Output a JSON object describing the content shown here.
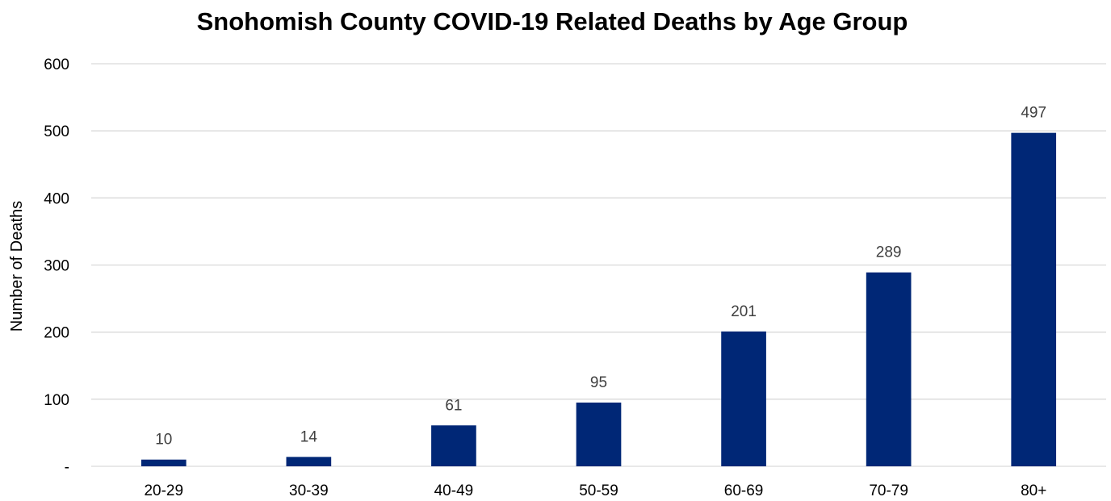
{
  "chart_data": {
    "type": "bar",
    "title": "Snohomish County COVID-19 Related Deaths by Age Group",
    "xlabel": "",
    "ylabel": "Number of Deaths",
    "categories": [
      "20-29",
      "30-39",
      "40-49",
      "50-59",
      "60-69",
      "70-79",
      "80+"
    ],
    "values": [
      10,
      14,
      61,
      95,
      201,
      289,
      497
    ],
    "data_labels": [
      "10",
      "14",
      "61",
      "95",
      "201",
      "289",
      "497"
    ],
    "ylim": [
      0,
      600
    ],
    "yticks": [
      0,
      100,
      200,
      300,
      400,
      500,
      600
    ],
    "ytick_labels": [
      "-",
      "100",
      "200",
      "300",
      "400",
      "500",
      "600"
    ],
    "grid": true,
    "legend": "none",
    "bar_color": "#002776"
  }
}
